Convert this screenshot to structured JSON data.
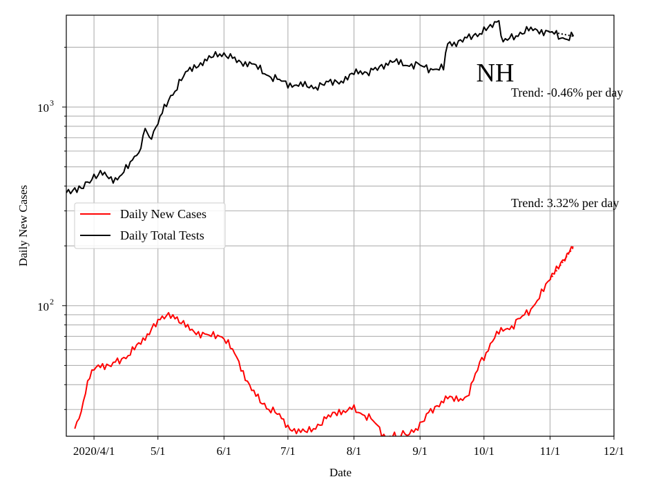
{
  "chart_data": {
    "type": "line",
    "title": "NH",
    "xlabel": "Date",
    "ylabel": "Daily New Cases",
    "y_scale": "log",
    "ylim": [
      22,
      2900
    ],
    "xlim": [
      "2020-03-19",
      "2020-12-01"
    ],
    "grid": "on (major and minor)",
    "legend_position": "center-left",
    "x_tick_labels": [
      {
        "date": "2020-04-01",
        "label": "2020/4/1"
      },
      {
        "date": "2020-05-01",
        "label": "5/1"
      },
      {
        "date": "2020-06-01",
        "label": "6/1"
      },
      {
        "date": "2020-07-01",
        "label": "7/1"
      },
      {
        "date": "2020-08-01",
        "label": "8/1"
      },
      {
        "date": "2020-09-01",
        "label": "9/1"
      },
      {
        "date": "2020-10-01",
        "label": "10/1"
      },
      {
        "date": "2020-11-01",
        "label": "11/1"
      },
      {
        "date": "2020-12-01",
        "label": "12/1"
      }
    ],
    "y_tick_labels": [
      {
        "value": 100,
        "base": "10",
        "exp": "2"
      },
      {
        "value": 1000,
        "base": "10",
        "exp": "3"
      }
    ],
    "annotations": {
      "trend_tests": "Trend: -0.46% per day",
      "trend_cases": "Trend: 3.32% per day"
    },
    "series": [
      {
        "name": "Daily New Cases",
        "color": "#ff0000",
        "points": [
          [
            "2020-03-23",
            24
          ],
          [
            "2020-03-25",
            27
          ],
          [
            "2020-03-27",
            33
          ],
          [
            "2020-03-30",
            43
          ],
          [
            "2020-04-02",
            49
          ],
          [
            "2020-04-05",
            51
          ],
          [
            "2020-04-08",
            50
          ],
          [
            "2020-04-11",
            52
          ],
          [
            "2020-04-14",
            54
          ],
          [
            "2020-04-17",
            56
          ],
          [
            "2020-04-20",
            60
          ],
          [
            "2020-04-23",
            64
          ],
          [
            "2020-04-26",
            72
          ],
          [
            "2020-04-29",
            81
          ],
          [
            "2020-05-02",
            85
          ],
          [
            "2020-05-05",
            89
          ],
          [
            "2020-05-08",
            90
          ],
          [
            "2020-05-11",
            82
          ],
          [
            "2020-05-14",
            78
          ],
          [
            "2020-05-17",
            76
          ],
          [
            "2020-05-20",
            74
          ],
          [
            "2020-05-23",
            72
          ],
          [
            "2020-05-26",
            70
          ],
          [
            "2020-05-29",
            71
          ],
          [
            "2020-06-01",
            68
          ],
          [
            "2020-06-04",
            61
          ],
          [
            "2020-06-07",
            55
          ],
          [
            "2020-06-10",
            47
          ],
          [
            "2020-06-13",
            40
          ],
          [
            "2020-06-16",
            35
          ],
          [
            "2020-06-19",
            32
          ],
          [
            "2020-06-22",
            30
          ],
          [
            "2020-06-25",
            29
          ],
          [
            "2020-06-28",
            27
          ],
          [
            "2020-07-01",
            25
          ],
          [
            "2020-07-04",
            24
          ],
          [
            "2020-07-07",
            23
          ],
          [
            "2020-07-10",
            23
          ],
          [
            "2020-07-13",
            24
          ],
          [
            "2020-07-16",
            25
          ],
          [
            "2020-07-19",
            27
          ],
          [
            "2020-07-22",
            29
          ],
          [
            "2020-07-25",
            30
          ],
          [
            "2020-07-28",
            29
          ],
          [
            "2020-07-31",
            30
          ],
          [
            "2020-08-03",
            29
          ],
          [
            "2020-08-06",
            28
          ],
          [
            "2020-08-09",
            27
          ],
          [
            "2020-08-12",
            25
          ],
          [
            "2020-08-15",
            22.5
          ],
          [
            "2020-08-18",
            22
          ],
          [
            "2020-08-23",
            22
          ],
          [
            "2020-08-27",
            22.5
          ],
          [
            "2020-08-30",
            24
          ],
          [
            "2020-09-02",
            26
          ],
          [
            "2020-09-05",
            29
          ],
          [
            "2020-09-08",
            31
          ],
          [
            "2020-09-11",
            33
          ],
          [
            "2020-09-14",
            34
          ],
          [
            "2020-09-17",
            33
          ],
          [
            "2020-09-20",
            34
          ],
          [
            "2020-09-23",
            35
          ],
          [
            "2020-09-26",
            42
          ],
          [
            "2020-09-29",
            52
          ],
          [
            "2020-10-02",
            58
          ],
          [
            "2020-10-05",
            66
          ],
          [
            "2020-10-08",
            72
          ],
          [
            "2020-10-11",
            76
          ],
          [
            "2020-10-14",
            79
          ],
          [
            "2020-10-17",
            86
          ],
          [
            "2020-10-20",
            90
          ],
          [
            "2020-10-23",
            96
          ],
          [
            "2020-10-26",
            106
          ],
          [
            "2020-10-29",
            118
          ],
          [
            "2020-11-01",
            135
          ],
          [
            "2020-11-04",
            158
          ],
          [
            "2020-11-07",
            170
          ],
          [
            "2020-11-10",
            185
          ],
          [
            "2020-11-12",
            197
          ]
        ]
      },
      {
        "name": "Daily Total Tests",
        "color": "#000000",
        "points": [
          [
            "2020-03-19",
            370
          ],
          [
            "2020-03-22",
            380
          ],
          [
            "2020-03-26",
            390
          ],
          [
            "2020-03-30",
            415
          ],
          [
            "2020-04-03",
            455
          ],
          [
            "2020-04-06",
            470
          ],
          [
            "2020-04-09",
            445
          ],
          [
            "2020-04-12",
            430
          ],
          [
            "2020-04-15",
            470
          ],
          [
            "2020-04-18",
            530
          ],
          [
            "2020-04-21",
            570
          ],
          [
            "2020-04-23",
            620
          ],
          [
            "2020-04-25",
            780
          ],
          [
            "2020-04-27",
            705
          ],
          [
            "2020-04-30",
            790
          ],
          [
            "2020-05-03",
            930
          ],
          [
            "2020-05-06",
            1080
          ],
          [
            "2020-05-09",
            1200
          ],
          [
            "2020-05-12",
            1360
          ],
          [
            "2020-05-15",
            1520
          ],
          [
            "2020-05-18",
            1630
          ],
          [
            "2020-05-21",
            1670
          ],
          [
            "2020-05-24",
            1710
          ],
          [
            "2020-05-27",
            1790
          ],
          [
            "2020-05-30",
            1850
          ],
          [
            "2020-06-02",
            1800
          ],
          [
            "2020-06-05",
            1760
          ],
          [
            "2020-06-08",
            1720
          ],
          [
            "2020-06-11",
            1690
          ],
          [
            "2020-06-14",
            1650
          ],
          [
            "2020-06-17",
            1550
          ],
          [
            "2020-06-20",
            1470
          ],
          [
            "2020-06-23",
            1410
          ],
          [
            "2020-06-26",
            1380
          ],
          [
            "2020-06-29",
            1350
          ],
          [
            "2020-07-02",
            1320
          ],
          [
            "2020-07-05",
            1290
          ],
          [
            "2020-07-08",
            1270
          ],
          [
            "2020-07-11",
            1250
          ],
          [
            "2020-07-14",
            1260
          ],
          [
            "2020-07-17",
            1300
          ],
          [
            "2020-07-20",
            1340
          ],
          [
            "2020-07-23",
            1370
          ],
          [
            "2020-07-26",
            1350
          ],
          [
            "2020-07-29",
            1370
          ],
          [
            "2020-08-01",
            1460
          ],
          [
            "2020-08-04",
            1520
          ],
          [
            "2020-08-07",
            1490
          ],
          [
            "2020-08-10",
            1540
          ],
          [
            "2020-08-13",
            1600
          ],
          [
            "2020-08-16",
            1660
          ],
          [
            "2020-08-19",
            1680
          ],
          [
            "2020-08-22",
            1640
          ],
          [
            "2020-08-25",
            1620
          ],
          [
            "2020-08-28",
            1650
          ],
          [
            "2020-08-31",
            1660
          ],
          [
            "2020-09-03",
            1590
          ],
          [
            "2020-09-06",
            1560
          ],
          [
            "2020-09-09",
            1550
          ],
          [
            "2020-09-12",
            1540
          ],
          [
            "2020-09-14",
            2080
          ],
          [
            "2020-09-17",
            2120
          ],
          [
            "2020-09-20",
            2180
          ],
          [
            "2020-09-23",
            2230
          ],
          [
            "2020-09-26",
            2290
          ],
          [
            "2020-09-29",
            2340
          ],
          [
            "2020-10-02",
            2430
          ],
          [
            "2020-10-05",
            2520
          ],
          [
            "2020-10-07",
            2680
          ],
          [
            "2020-10-08",
            2720
          ],
          [
            "2020-10-10",
            2130
          ],
          [
            "2020-10-13",
            2220
          ],
          [
            "2020-10-16",
            2280
          ],
          [
            "2020-10-19",
            2330
          ],
          [
            "2020-10-22",
            2420
          ],
          [
            "2020-10-25",
            2480
          ],
          [
            "2020-10-28",
            2450
          ],
          [
            "2020-10-31",
            2410
          ],
          [
            "2020-11-03",
            2330
          ],
          [
            "2020-11-06",
            2220
          ],
          [
            "2020-11-09",
            2190
          ],
          [
            "2020-11-12",
            2270
          ]
        ]
      }
    ]
  }
}
